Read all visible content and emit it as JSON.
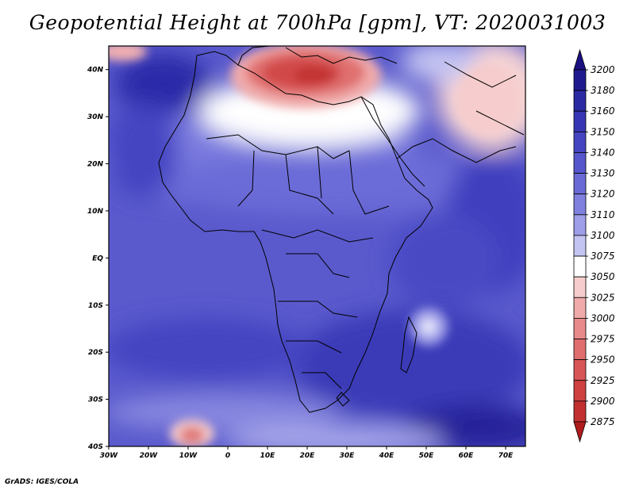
{
  "title": "Geopotential Height at 700hPa [gpm], VT: 2020031003",
  "credit": "GrADS: IGES/COLA",
  "map": {
    "lon_ticks": [
      "30W",
      "20W",
      "10W",
      "0",
      "10E",
      "20E",
      "30E",
      "40E",
      "50E",
      "60E",
      "70E"
    ],
    "lat_ticks": [
      "40N",
      "30N",
      "20N",
      "10N",
      "EQ",
      "10S",
      "20S",
      "30S",
      "40S"
    ],
    "lon_range": [
      -30,
      75
    ],
    "lat_range": [
      -40,
      45
    ]
  },
  "colorbar": {
    "levels": [
      "3200",
      "3180",
      "3160",
      "3150",
      "3140",
      "3130",
      "3120",
      "3110",
      "3100",
      "3075",
      "3050",
      "3025",
      "3000",
      "2975",
      "2950",
      "2925",
      "2900",
      "2875"
    ],
    "colors": [
      "#1f1b8f",
      "#2a2aa3",
      "#3636b5",
      "#4545c2",
      "#5656cc",
      "#6a6ad6",
      "#8080df",
      "#9d9de8",
      "#c4c4f2",
      "#ffffff",
      "#f6cccc",
      "#f0aaaa",
      "#e88a8a",
      "#e06e6e",
      "#d85555",
      "#cf4040",
      "#c23030",
      "#b02020"
    ],
    "top_arrow_color": "#1a1080",
    "bottom_arrow_color": "#b01c1c"
  }
}
